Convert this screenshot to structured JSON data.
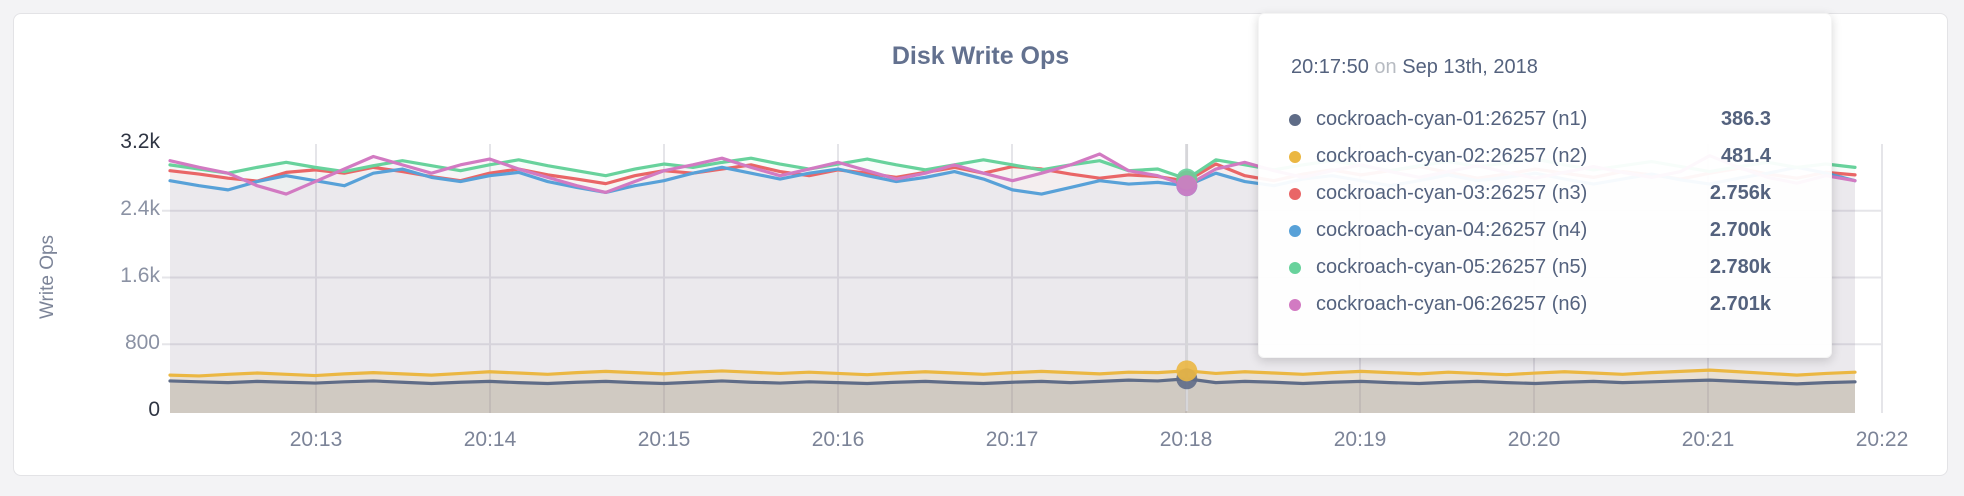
{
  "accent_colors": {
    "page_background": "#f3f3f5",
    "card_background": "#ffffff",
    "title_color": "#63718f",
    "axis_text": "#7c8498",
    "gridline": "#e5e5e9",
    "guideline": "#d6d6d9"
  },
  "chart_data": {
    "type": "area",
    "title": "Disk Write Ops",
    "ylabel": "Write Ops",
    "xlabel": "",
    "ylim": [
      0,
      3200
    ],
    "grid": true,
    "legend_position": "tooltip-only",
    "y_tick_values": [
      3200,
      2400,
      1600,
      800,
      0
    ],
    "y_tick_labels": [
      "3.2k",
      "2.4k",
      "1.6k",
      "800",
      "0"
    ],
    "x_tick_labels": [
      "20:13",
      "20:14",
      "20:15",
      "20:16",
      "20:17",
      "20:18",
      "20:19",
      "20:20",
      "20:21",
      "20:22"
    ],
    "x_start": "20:12:10",
    "x_end": "20:21:50",
    "x_interval_seconds": 10,
    "hover_index": 35,
    "hover_time": "20:17:50",
    "series": [
      {
        "name": "cockroach-cyan-01:26257 (n1)",
        "color": "#5F6C87",
        "fill_opacity": 0.22,
        "values": [
          360,
          350,
          340,
          355,
          345,
          335,
          350,
          360,
          345,
          330,
          345,
          355,
          340,
          330,
          345,
          355,
          340,
          330,
          345,
          360,
          345,
          335,
          350,
          340,
          330,
          345,
          355,
          340,
          330,
          345,
          355,
          340,
          355,
          370,
          360,
          386.3,
          340,
          355,
          345,
          330,
          345,
          355,
          340,
          330,
          345,
          355,
          340,
          330,
          345,
          355,
          340,
          350,
          360,
          370,
          355,
          340,
          325,
          340,
          350
        ]
      },
      {
        "name": "cockroach-cyan-02:26257 (n2)",
        "color": "#EBB742",
        "fill_opacity": 0.16,
        "values": [
          430,
          420,
          440,
          455,
          440,
          425,
          445,
          460,
          445,
          430,
          450,
          470,
          455,
          440,
          460,
          475,
          460,
          445,
          465,
          480,
          465,
          450,
          465,
          450,
          435,
          455,
          470,
          455,
          440,
          460,
          475,
          460,
          445,
          465,
          460,
          481.4,
          450,
          470,
          455,
          440,
          460,
          475,
          460,
          445,
          465,
          450,
          435,
          455,
          470,
          455,
          440,
          460,
          475,
          490,
          470,
          450,
          430,
          450,
          465
        ]
      },
      {
        "name": "cockroach-cyan-03:26257 (n3)",
        "color": "#E96667",
        "fill_opacity": 0.05,
        "values": [
          2880,
          2840,
          2790,
          2755,
          2860,
          2890,
          2850,
          2920,
          2870,
          2810,
          2760,
          2850,
          2900,
          2830,
          2780,
          2725,
          2820,
          2880,
          2850,
          2900,
          2950,
          2870,
          2820,
          2890,
          2850,
          2800,
          2860,
          2920,
          2850,
          2930,
          2900,
          2840,
          2790,
          2830,
          2810,
          2756,
          2960,
          2820,
          2760,
          2840,
          2890,
          2830,
          2880,
          2930,
          2860,
          2790,
          2840,
          2900,
          2850,
          2800,
          2870,
          2830,
          2780,
          2850,
          2910,
          2840,
          2790,
          2860,
          2830
        ]
      },
      {
        "name": "cockroach-cyan-04:26257 (n4)",
        "color": "#58A1D8",
        "fill_opacity": 0.05,
        "values": [
          2760,
          2700,
          2650,
          2750,
          2820,
          2760,
          2700,
          2850,
          2900,
          2800,
          2750,
          2820,
          2860,
          2750,
          2680,
          2620,
          2700,
          2760,
          2850,
          2920,
          2850,
          2780,
          2850,
          2900,
          2820,
          2750,
          2800,
          2870,
          2780,
          2650,
          2600,
          2680,
          2760,
          2720,
          2740,
          2700,
          2850,
          2750,
          2700,
          2780,
          2820,
          2760,
          2700,
          2760,
          2830,
          2760,
          2800,
          2850,
          2780,
          2720,
          2780,
          2840,
          2770,
          2720,
          2790,
          2850,
          2920,
          2850,
          2760
        ]
      },
      {
        "name": "cockroach-cyan-05:26257 (n5)",
        "color": "#68D29C",
        "fill_opacity": 0.05,
        "values": [
          2950,
          2900,
          2850,
          2920,
          2980,
          2920,
          2870,
          2940,
          3000,
          2940,
          2880,
          2950,
          3010,
          2940,
          2880,
          2820,
          2900,
          2960,
          2920,
          2980,
          3030,
          2960,
          2900,
          2960,
          3020,
          2950,
          2890,
          2950,
          3010,
          2950,
          2890,
          2950,
          3000,
          2880,
          2900,
          2780,
          3010,
          2950,
          2890,
          2950,
          3000,
          2940,
          2880,
          2940,
          2990,
          2930,
          2970,
          3020,
          2950,
          2890,
          2940,
          2990,
          2930,
          2870,
          2930,
          2980,
          2920,
          2960,
          2920
        ]
      },
      {
        "name": "cockroach-cyan-06:26257 (n6)",
        "color": "#D27AC2",
        "fill_opacity": 0.05,
        "values": [
          3000,
          2920,
          2850,
          2700,
          2600,
          2750,
          2900,
          3050,
          2950,
          2850,
          2950,
          3020,
          2900,
          2800,
          2700,
          2620,
          2750,
          2880,
          2950,
          3030,
          2920,
          2820,
          2900,
          2980,
          2880,
          2780,
          2850,
          2950,
          2850,
          2760,
          2850,
          2950,
          3080,
          2880,
          2820,
          2701,
          2900,
          2980,
          2880,
          2800,
          2880,
          2950,
          2870,
          2800,
          2870,
          2940,
          2860,
          2790,
          2860,
          2930,
          2860,
          2800,
          2870,
          3060,
          2920,
          2800,
          2730,
          2820,
          2760
        ]
      }
    ]
  },
  "tooltip": {
    "time": "20:17:50",
    "on_word": "on",
    "date": "Sep 13th, 2018",
    "rows": [
      {
        "label": "cockroach-cyan-01:26257 (n1)",
        "value": "386.3",
        "color": "#5F6C87"
      },
      {
        "label": "cockroach-cyan-02:26257 (n2)",
        "value": "481.4",
        "color": "#EBB742"
      },
      {
        "label": "cockroach-cyan-03:26257 (n3)",
        "value": "2.756k",
        "color": "#E96667"
      },
      {
        "label": "cockroach-cyan-04:26257 (n4)",
        "value": "2.700k",
        "color": "#58A1D8"
      },
      {
        "label": "cockroach-cyan-05:26257 (n5)",
        "value": "2.780k",
        "color": "#68D29C"
      },
      {
        "label": "cockroach-cyan-06:26257 (n6)",
        "value": "2.701k",
        "color": "#D27AC2"
      }
    ]
  }
}
